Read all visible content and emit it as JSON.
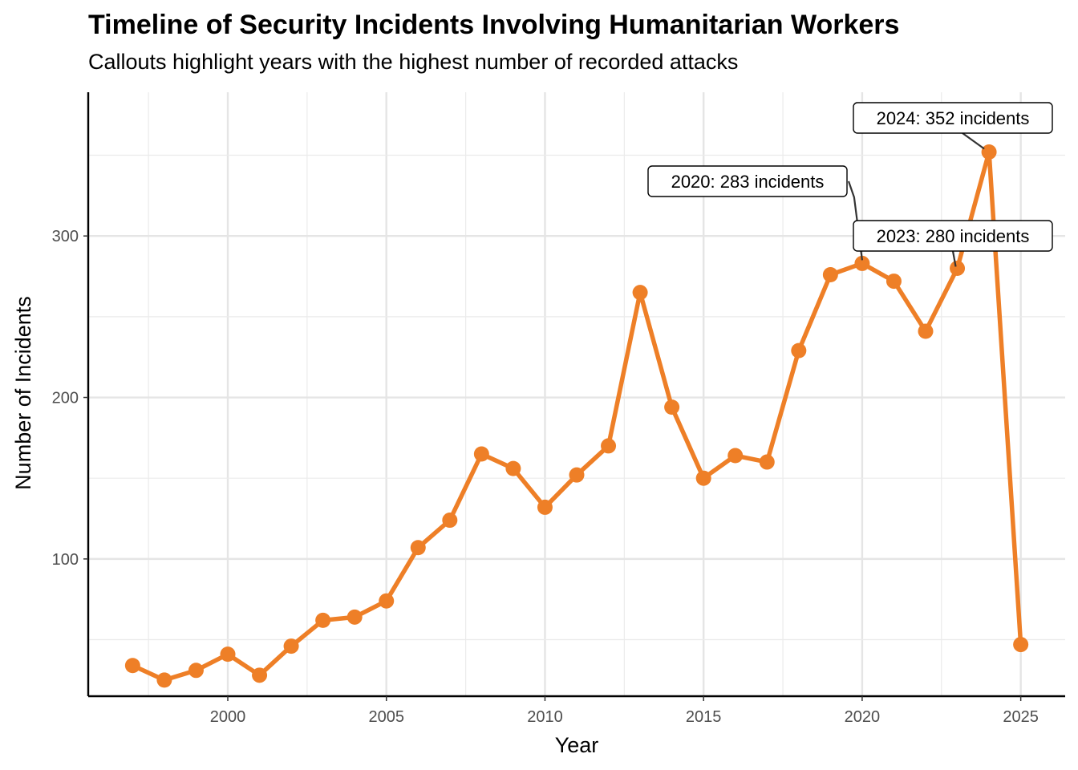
{
  "chart_data": {
    "type": "line",
    "title": "Timeline of Security Incidents Involving Humanitarian Workers",
    "subtitle": "Callouts highlight years with the highest number of recorded attacks",
    "xlabel": "Year",
    "ylabel": "Number of Incidents",
    "x": [
      1997,
      1998,
      1999,
      2000,
      2001,
      2002,
      2003,
      2004,
      2005,
      2006,
      2007,
      2008,
      2009,
      2010,
      2011,
      2012,
      2013,
      2014,
      2015,
      2016,
      2017,
      2018,
      2019,
      2020,
      2021,
      2022,
      2023,
      2024,
      2025
    ],
    "series": [
      {
        "values": [
          34,
          25,
          31,
          41,
          28,
          46,
          62,
          64,
          74,
          107,
          124,
          165,
          156,
          132,
          152,
          170,
          265,
          194,
          150,
          164,
          160,
          229,
          276,
          283,
          272,
          241,
          280,
          352,
          47
        ]
      }
    ],
    "xlim": [
      1995.6,
      2026.4
    ],
    "ylim": [
      15,
      389
    ],
    "x_ticks": [
      2000,
      2005,
      2010,
      2015,
      2020,
      2025
    ],
    "y_ticks": [
      100,
      200,
      300
    ],
    "grid": true,
    "line_color": "#EE7F27",
    "annotations": [
      {
        "year": 2020,
        "value": 283,
        "text": "2020: 283 incidents"
      },
      {
        "year": 2023,
        "value": 280,
        "text": "2023: 280 incidents"
      },
      {
        "year": 2024,
        "value": 352,
        "text": "2024: 352 incidents"
      }
    ]
  }
}
